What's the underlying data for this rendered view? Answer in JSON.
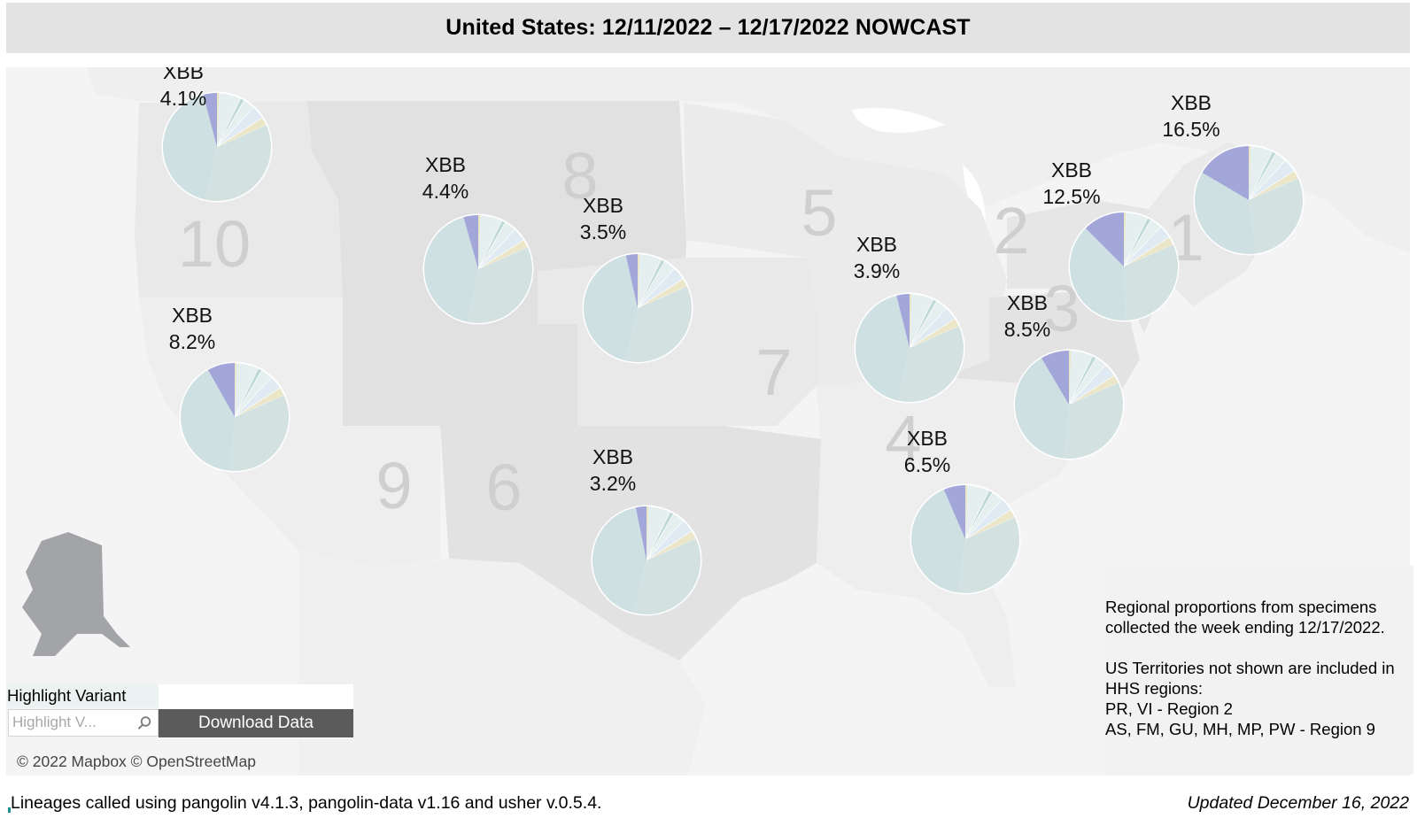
{
  "title": "United States: 12/11/2022 – 12/17/2022 NOWCAST",
  "map": {
    "regions": [
      {
        "number": "1"
      },
      {
        "number": "2"
      },
      {
        "number": "3"
      },
      {
        "number": "4"
      },
      {
        "number": "5"
      },
      {
        "number": "6"
      },
      {
        "number": "7"
      },
      {
        "number": "8"
      },
      {
        "number": "9"
      },
      {
        "number": "10"
      }
    ],
    "highlight_color": "#a2a6d8",
    "pie_colors": {
      "dominant_a": "#cfe0e2",
      "dominant_b": "#d4e1e1",
      "minor_light": "#e6efef",
      "minor_blue": "#dfeaf2",
      "minor_teal": "#bfd9d7",
      "minor_yellow": "#ece6c8",
      "xbb": "#a2a6d8"
    },
    "pies": [
      {
        "region": "10",
        "label_name": "XBB",
        "label_value": "4.1%",
        "xbb_share": 0.041
      },
      {
        "region": "8a",
        "label_name": "XBB",
        "label_value": "4.4%",
        "xbb_share": 0.044
      },
      {
        "region": "8b",
        "label_name": "XBB",
        "label_value": "3.5%",
        "xbb_share": 0.035
      },
      {
        "region": "9",
        "label_name": "XBB",
        "label_value": "8.2%",
        "xbb_share": 0.082
      },
      {
        "region": "6",
        "label_name": "XBB",
        "label_value": "3.2%",
        "xbb_share": 0.032
      },
      {
        "region": "5",
        "label_name": "XBB",
        "label_value": "3.9%",
        "xbb_share": 0.039
      },
      {
        "region": "3",
        "label_name": "XBB",
        "label_value": "8.5%",
        "xbb_share": 0.085
      },
      {
        "region": "4",
        "label_name": "XBB",
        "label_value": "6.5%",
        "xbb_share": 0.065
      },
      {
        "region": "2",
        "label_name": "XBB",
        "label_value": "12.5%",
        "xbb_share": 0.125
      },
      {
        "region": "1",
        "label_name": "XBB",
        "label_value": "16.5%",
        "xbb_share": 0.165
      }
    ]
  },
  "note": {
    "line1": "Regional proportions from specimens",
    "line2": "collected the week ending 12/17/2022.",
    "line3": "US Territories not shown are included in",
    "line4": "HHS regions:",
    "line5": "PR, VI - Region 2",
    "line6": "AS, FM, GU, MH, MP, PW - Region 9"
  },
  "highlight": {
    "label": "Highlight Variant",
    "placeholder": "Highlight V...",
    "icon": "search-icon"
  },
  "download_label": "Download Data",
  "attribution": "© 2022 Mapbox  © OpenStreetMap",
  "footer": {
    "lineage_note": "Lineages called using pangolin v4.1.3, pangolin-data v1.16 and usher v.0.5.4.",
    "updated": "Updated December 16, 2022"
  }
}
